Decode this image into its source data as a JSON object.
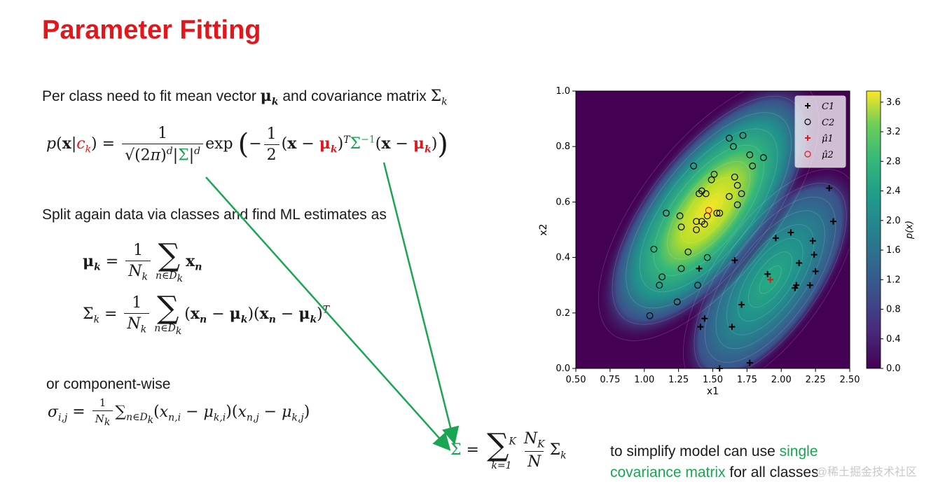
{
  "slide": {
    "title": "Parameter Fitting",
    "intro_text": "Per class need to fit mean vector",
    "intro_and": "and covariance matrix",
    "intro_mu": "μ",
    "intro_k": "k",
    "intro_sigma": "Σ",
    "split_text": "Split again data via classes and find ML estimates as",
    "component_text": "or component-wise",
    "simplify_prefix": "to simplify model can use",
    "simplify_green": "single covariance matrix",
    "simplify_green_1": "single",
    "simplify_green_2": "covariance matrix",
    "simplify_suffix": "for all classes",
    "watermark": "@稀土掘金技术社区",
    "colors": {
      "title": "#e3161b",
      "accent_red": "#e3161b",
      "accent_green": "#1aa553"
    }
  },
  "chart_data": {
    "type": "scatter",
    "background": "contour (viridis) of p(x)",
    "xlabel": "x1",
    "ylabel": "x2",
    "colorbar_label": "p(x)",
    "xlim": [
      0.5,
      2.5
    ],
    "ylim": [
      0.0,
      1.0
    ],
    "xticks": [
      "0.50",
      "0.75",
      "1.00",
      "1.25",
      "1.50",
      "1.75",
      "2.00",
      "2.25",
      "2.50"
    ],
    "yticks": [
      "0.0",
      "0.2",
      "0.4",
      "0.6",
      "0.8",
      "1.0"
    ],
    "colorbar_ticks": [
      "0.0",
      "0.4",
      "0.8",
      "1.2",
      "1.6",
      "2.0",
      "2.4",
      "2.8",
      "3.2",
      "3.6"
    ],
    "colorbar_range": [
      0.0,
      3.75
    ],
    "legend_position": "top-right",
    "legend": [
      "C1",
      "C2",
      "μ̂1",
      "μ̂2"
    ],
    "series": [
      {
        "name": "C1",
        "marker": "+",
        "color": "#000000",
        "points": [
          [
            2.35,
            0.65
          ],
          [
            2.38,
            0.53
          ],
          [
            2.07,
            0.49
          ],
          [
            1.96,
            0.47
          ],
          [
            2.23,
            0.46
          ],
          [
            2.24,
            0.41
          ],
          [
            2.13,
            0.38
          ],
          [
            1.9,
            0.34
          ],
          [
            2.25,
            0.35
          ],
          [
            2.1,
            0.29
          ],
          [
            2.11,
            0.3
          ],
          [
            2.21,
            0.3
          ],
          [
            1.66,
            0.39
          ],
          [
            1.4,
            0.36
          ],
          [
            1.71,
            0.23
          ],
          [
            1.44,
            0.18
          ],
          [
            1.41,
            0.15
          ],
          [
            1.64,
            0.15
          ],
          [
            1.77,
            0.02
          ],
          [
            1.55,
            0.0
          ]
        ]
      },
      {
        "name": "C2",
        "marker": "o",
        "color": "#000000",
        "points": [
          [
            1.62,
            0.83
          ],
          [
            1.72,
            0.84
          ],
          [
            1.65,
            0.8
          ],
          [
            1.77,
            0.77
          ],
          [
            1.87,
            0.76
          ],
          [
            1.79,
            0.73
          ],
          [
            1.36,
            0.73
          ],
          [
            1.51,
            0.7
          ],
          [
            1.66,
            0.69
          ],
          [
            1.49,
            0.68
          ],
          [
            1.68,
            0.66
          ],
          [
            1.42,
            0.64
          ],
          [
            1.45,
            0.63
          ],
          [
            1.4,
            0.63
          ],
          [
            1.71,
            0.63
          ],
          [
            1.62,
            0.62
          ],
          [
            1.68,
            0.59
          ],
          [
            1.16,
            0.56
          ],
          [
            1.26,
            0.55
          ],
          [
            1.53,
            0.56
          ],
          [
            1.55,
            0.56
          ],
          [
            1.46,
            0.55
          ],
          [
            1.42,
            0.53
          ],
          [
            1.38,
            0.53
          ],
          [
            1.44,
            0.52
          ],
          [
            1.27,
            0.51
          ],
          [
            1.38,
            0.5
          ],
          [
            1.32,
            0.42
          ],
          [
            1.07,
            0.43
          ],
          [
            1.46,
            0.4
          ],
          [
            1.27,
            0.36
          ],
          [
            1.13,
            0.33
          ],
          [
            1.11,
            0.3
          ],
          [
            1.39,
            0.3
          ],
          [
            1.24,
            0.24
          ],
          [
            1.04,
            0.19
          ]
        ]
      },
      {
        "name": "μ̂1",
        "marker": "+",
        "color": "#e3161b",
        "points": [
          [
            1.92,
            0.32
          ]
        ]
      },
      {
        "name": "μ̂2",
        "marker": "o",
        "color": "#e3161b",
        "points": [
          [
            1.47,
            0.57
          ]
        ]
      }
    ]
  }
}
